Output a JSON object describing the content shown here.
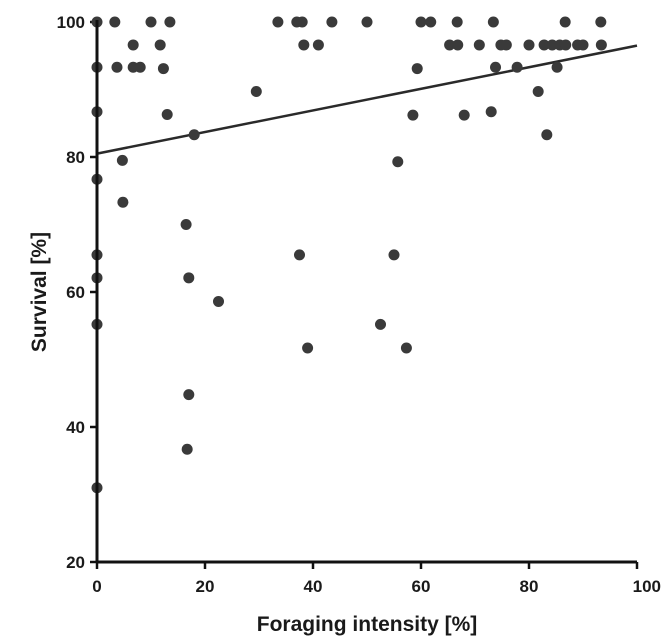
{
  "chart_data": {
    "type": "scatter",
    "title": "",
    "xlabel": "Foraging intensity [%]",
    "ylabel": "Survival [%]",
    "xlim": [
      0,
      100
    ],
    "ylim": [
      20,
      100
    ],
    "x_ticks": [
      "0",
      "20",
      "40",
      "60",
      "80",
      "100"
    ],
    "y_ticks": [
      "20",
      "40",
      "60",
      "80",
      "100"
    ],
    "grid": false,
    "legend": "none",
    "point_color": "#3a3a3a",
    "trendline": {
      "x": [
        0,
        100
      ],
      "y": [
        80.5,
        96.5
      ]
    },
    "points": [
      {
        "x": 0,
        "y": 100
      },
      {
        "x": 0,
        "y": 93.3
      },
      {
        "x": 0,
        "y": 86.7
      },
      {
        "x": 0,
        "y": 76.7
      },
      {
        "x": 0,
        "y": 65.5
      },
      {
        "x": 0,
        "y": 62.1
      },
      {
        "x": 0,
        "y": 55.2
      },
      {
        "x": 0,
        "y": 31.0
      },
      {
        "x": 3.3,
        "y": 100
      },
      {
        "x": 3.7,
        "y": 93.3
      },
      {
        "x": 4.7,
        "y": 79.5
      },
      {
        "x": 4.8,
        "y": 73.3
      },
      {
        "x": 6.7,
        "y": 96.6
      },
      {
        "x": 6.7,
        "y": 93.3
      },
      {
        "x": 8.0,
        "y": 93.3
      },
      {
        "x": 10.0,
        "y": 100
      },
      {
        "x": 11.7,
        "y": 96.6
      },
      {
        "x": 12.3,
        "y": 93.1
      },
      {
        "x": 13.0,
        "y": 86.3
      },
      {
        "x": 13.5,
        "y": 100
      },
      {
        "x": 16.5,
        "y": 70.0
      },
      {
        "x": 16.7,
        "y": 36.7
      },
      {
        "x": 17.0,
        "y": 62.1
      },
      {
        "x": 17.0,
        "y": 44.8
      },
      {
        "x": 18.0,
        "y": 83.3
      },
      {
        "x": 22.5,
        "y": 58.6
      },
      {
        "x": 29.5,
        "y": 89.7
      },
      {
        "x": 33.5,
        "y": 100
      },
      {
        "x": 37.0,
        "y": 100
      },
      {
        "x": 38.0,
        "y": 100
      },
      {
        "x": 37.5,
        "y": 65.5
      },
      {
        "x": 38.3,
        "y": 96.6
      },
      {
        "x": 39.0,
        "y": 51.7
      },
      {
        "x": 41.0,
        "y": 96.6
      },
      {
        "x": 43.5,
        "y": 100
      },
      {
        "x": 50.0,
        "y": 100
      },
      {
        "x": 52.5,
        "y": 55.2
      },
      {
        "x": 55.0,
        "y": 65.5
      },
      {
        "x": 55.7,
        "y": 79.3
      },
      {
        "x": 57.3,
        "y": 51.7
      },
      {
        "x": 58.5,
        "y": 86.2
      },
      {
        "x": 59.3,
        "y": 93.1
      },
      {
        "x": 60.0,
        "y": 100
      },
      {
        "x": 61.8,
        "y": 100
      },
      {
        "x": 65.3,
        "y": 96.6
      },
      {
        "x": 66.8,
        "y": 96.6
      },
      {
        "x": 66.7,
        "y": 100
      },
      {
        "x": 68.0,
        "y": 86.2
      },
      {
        "x": 70.8,
        "y": 96.6
      },
      {
        "x": 73.0,
        "y": 86.7
      },
      {
        "x": 73.4,
        "y": 100
      },
      {
        "x": 73.8,
        "y": 93.3
      },
      {
        "x": 74.8,
        "y": 96.6
      },
      {
        "x": 75.8,
        "y": 96.6
      },
      {
        "x": 77.8,
        "y": 93.3
      },
      {
        "x": 80.0,
        "y": 96.6
      },
      {
        "x": 81.7,
        "y": 89.7
      },
      {
        "x": 82.8,
        "y": 96.6
      },
      {
        "x": 83.3,
        "y": 83.3
      },
      {
        "x": 84.3,
        "y": 96.6
      },
      {
        "x": 85.2,
        "y": 93.3
      },
      {
        "x": 85.7,
        "y": 96.6
      },
      {
        "x": 86.8,
        "y": 96.6
      },
      {
        "x": 86.7,
        "y": 100
      },
      {
        "x": 89.0,
        "y": 96.6
      },
      {
        "x": 90.0,
        "y": 96.6
      },
      {
        "x": 93.3,
        "y": 100
      },
      {
        "x": 93.4,
        "y": 96.6
      }
    ]
  }
}
